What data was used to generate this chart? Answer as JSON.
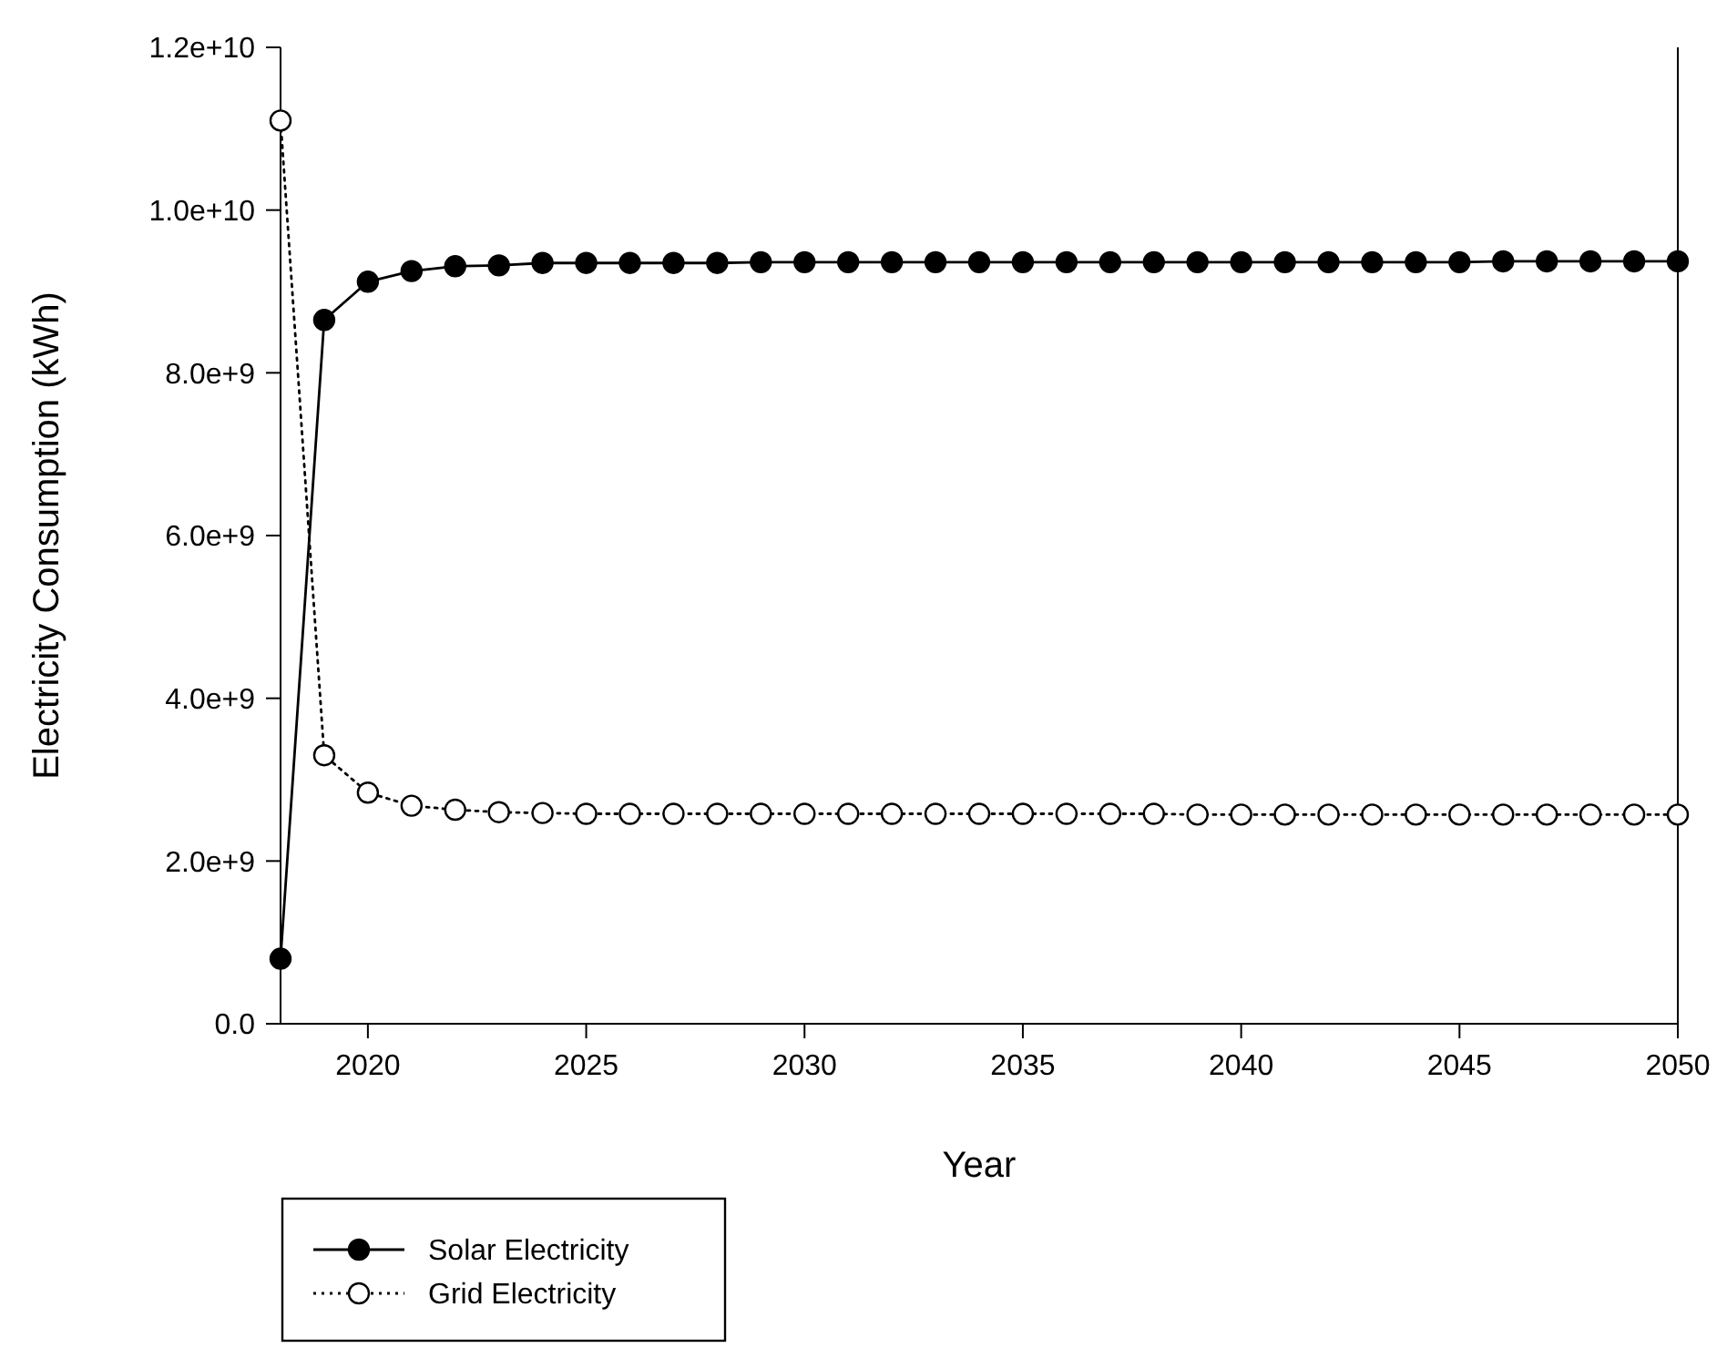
{
  "chart_data": {
    "type": "line",
    "xlabel": "Year",
    "ylabel": "Electricity Consumption (kWh)",
    "x": [
      2018,
      2019,
      2020,
      2021,
      2022,
      2023,
      2024,
      2025,
      2026,
      2027,
      2028,
      2029,
      2030,
      2031,
      2032,
      2033,
      2034,
      2035,
      2036,
      2037,
      2038,
      2039,
      2040,
      2041,
      2042,
      2043,
      2044,
      2045,
      2046,
      2047,
      2048,
      2049,
      2050
    ],
    "series": [
      {
        "name": "Solar Electricity",
        "color": "#000000",
        "line_style": "solid",
        "values": [
          800000000.0,
          8650000000.0,
          9120000000.0,
          9250000000.0,
          9310000000.0,
          9320000000.0,
          9350000000.0,
          9350000000.0,
          9350000000.0,
          9350000000.0,
          9350000000.0,
          9360000000.0,
          9360000000.0,
          9360000000.0,
          9360000000.0,
          9360000000.0,
          9360000000.0,
          9360000000.0,
          9360000000.0,
          9360000000.0,
          9360000000.0,
          9360000000.0,
          9360000000.0,
          9360000000.0,
          9360000000.0,
          9360000000.0,
          9360000000.0,
          9360000000.0,
          9370000000.0,
          9370000000.0,
          9370000000.0,
          9370000000.0,
          9370000000.0
        ]
      },
      {
        "name": "Grid Electricity",
        "color": "#000000",
        "line_style": "dotted",
        "values": [
          11100000000.0,
          3300000000.0,
          2840000000.0,
          2680000000.0,
          2630000000.0,
          2600000000.0,
          2590000000.0,
          2580000000.0,
          2580000000.0,
          2580000000.0,
          2580000000.0,
          2580000000.0,
          2580000000.0,
          2580000000.0,
          2580000000.0,
          2580000000.0,
          2580000000.0,
          2580000000.0,
          2580000000.0,
          2580000000.0,
          2580000000.0,
          2570000000.0,
          2570000000.0,
          2570000000.0,
          2570000000.0,
          2570000000.0,
          2570000000.0,
          2570000000.0,
          2570000000.0,
          2570000000.0,
          2570000000.0,
          2570000000.0,
          2570000000.0
        ]
      }
    ],
    "xlim": [
      2018,
      2050
    ],
    "xticks": [
      2020,
      2025,
      2030,
      2035,
      2040,
      2045,
      2050
    ],
    "ylim": [
      0,
      12000000000.0
    ],
    "yticks": [
      {
        "value": 0,
        "label": "0.0"
      },
      {
        "value": 2000000000.0,
        "label": "2.0e+9"
      },
      {
        "value": 4000000000.0,
        "label": "4.0e+9"
      },
      {
        "value": 6000000000.0,
        "label": "6.0e+9"
      },
      {
        "value": 8000000000.0,
        "label": "8.0e+9"
      },
      {
        "value": 10000000000.0,
        "label": "1.0e+10"
      },
      {
        "value": 12000000000.0,
        "label": "1.2e+10"
      }
    ],
    "marker": "circle",
    "legend": "bottom left",
    "grid": false
  }
}
